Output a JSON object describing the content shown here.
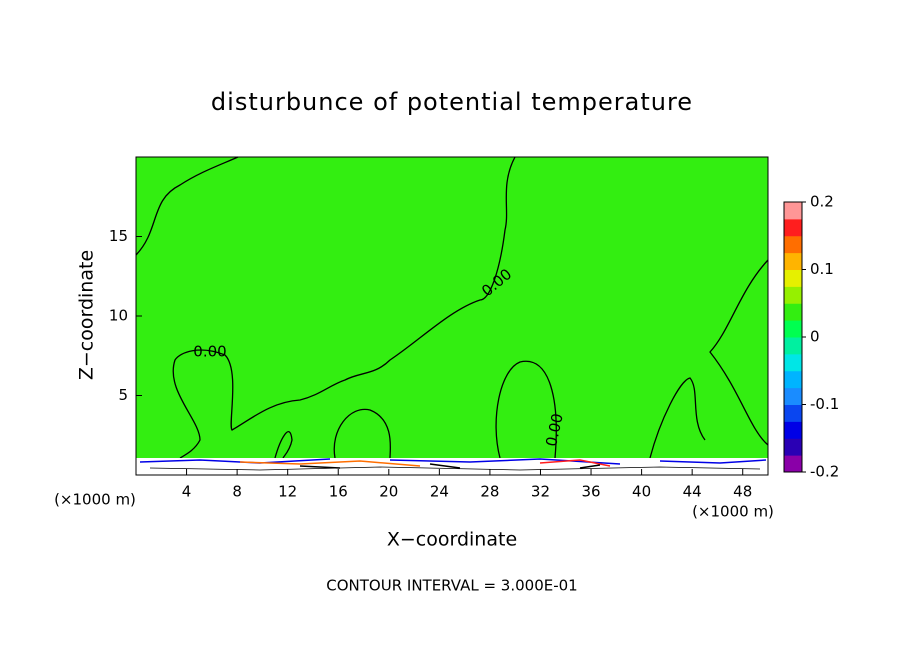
{
  "chart_data": {
    "type": "contour",
    "title": "disturbunce of potential temperature",
    "x_label": "X−coordinate",
    "y_label": "Z−coordinate",
    "x_unit_labels": [
      "(×1000 m)",
      "(×1000 m)"
    ],
    "xlim": [
      0,
      50
    ],
    "xticks": [
      4,
      8,
      12,
      16,
      20,
      24,
      28,
      32,
      36,
      40,
      44,
      48
    ],
    "ylim": [
      0,
      20
    ],
    "yticks": [
      5,
      10,
      15
    ],
    "fill_color": "#33ee11",
    "contour_labels": [
      "0.00",
      "0.00",
      "0.00"
    ],
    "colorbar": {
      "lim": [
        -0.2,
        0.2
      ],
      "ticks": [
        0.2,
        0.1,
        0,
        -0.1,
        -0.2
      ],
      "colors": [
        "#8a00a8",
        "#2a00b4",
        "#0000e6",
        "#0a46f0",
        "#1a8cff",
        "#00b4ff",
        "#00e6e6",
        "#00f0a0",
        "#00ff50",
        "#33ee11",
        "#96f000",
        "#e6f000",
        "#ffb400",
        "#ff6e00",
        "#ff1e1e",
        "#ff9696"
      ]
    },
    "note": "CONTOUR INTERVAL = 3.000E-01"
  }
}
